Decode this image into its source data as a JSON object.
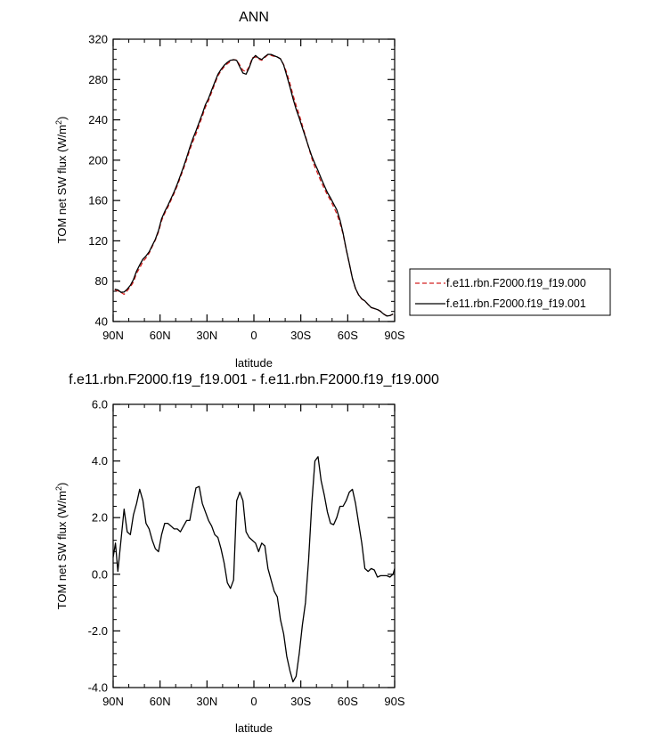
{
  "chart_data": [
    {
      "type": "line",
      "title": "ANN",
      "xlabel": "latitude",
      "ylabel_main": "TOM net SW flux (W/m",
      "ylabel_sup": "2",
      "ylabel_tail": ")",
      "xlim": [
        90,
        -90
      ],
      "ylim": [
        40,
        320
      ],
      "x_tick_values": [
        90,
        60,
        30,
        0,
        -30,
        -60,
        -90
      ],
      "x_tick_labels": [
        "90N",
        "60N",
        "30N",
        "0",
        "30S",
        "60S",
        "90S"
      ],
      "y_tick_values": [
        40,
        80,
        120,
        160,
        200,
        240,
        280,
        320
      ],
      "y_tick_labels": [
        "40",
        "80",
        "120",
        "160",
        "200",
        "240",
        "280",
        "320"
      ],
      "legend": "right",
      "series": [
        {
          "name": "f.e11.rbn.F2000.f19_f19.000",
          "style": "dashed",
          "color": "#d42020",
          "x": [
            89,
            87,
            85,
            83,
            81,
            79,
            77,
            75,
            73,
            71,
            69,
            67,
            65,
            63,
            61,
            59,
            57,
            55,
            53,
            51,
            49,
            47,
            45,
            43,
            41,
            39,
            37,
            35,
            33,
            31,
            29,
            27,
            25,
            23,
            21,
            19,
            17,
            15,
            13,
            11,
            9,
            7,
            5,
            3,
            1,
            -1,
            -3,
            -5,
            -7,
            -9,
            -11,
            -13,
            -15,
            -17,
            -19,
            -21,
            -23,
            -25,
            -27,
            -29,
            -31,
            -33,
            -35,
            -37,
            -39,
            -41,
            -43,
            -45,
            -47,
            -49,
            -51,
            -53,
            -55,
            -57,
            -59,
            -61,
            -63,
            -65,
            -67,
            -69,
            -71,
            -73,
            -75,
            -77,
            -79,
            -81,
            -83,
            -85,
            -87,
            -89
          ],
          "values": [
            71.5,
            70.3,
            68.9,
            66.9,
            70.6,
            74.4,
            79.2,
            87.9,
            93.2,
            99.4,
            103.1,
            107.7,
            114.5,
            120.8,
            128.9,
            140.1,
            147.2,
            153.3,
            160.4,
            167.1,
            174.7,
            183,
            191.5,
            200.5,
            210,
            218.5,
            226,
            234.9,
            243.5,
            252.6,
            259.2,
            267.4,
            275.7,
            283.6,
            288.6,
            292.6,
            295.6,
            297.9,
            299.7,
            299.3,
            294.3,
            289.2,
            287.8,
            292.7,
            301.6,
            302.3,
            300.2,
            299.1,
            301.8,
            304.7,
            303.9,
            303,
            302.2,
            300.7,
            294.8,
            286.7,
            276.3,
            264.7,
            254.4,
            245,
            234.5,
            223.9,
            212.9,
            201.9,
            193,
            186.1,
            178.5,
            171.9,
            165.7,
            160.2,
            153.8,
            147,
            137.8,
            126.8,
            111.5,
            97.4,
            82.6,
            72.5,
            66.2,
            62.3,
            60.3,
            56.9,
            53.8,
            52.8,
            51.9,
            50.2,
            47.4,
            45.6,
            45.9,
            47.2
          ]
        },
        {
          "name": "f.e11.rbn.F2000.f19_f19.001",
          "style": "solid",
          "color": "#000000",
          "x": [
            89,
            87,
            85,
            83,
            81,
            79,
            77,
            75,
            73,
            71,
            69,
            67,
            65,
            63,
            61,
            59,
            57,
            55,
            53,
            51,
            49,
            47,
            45,
            43,
            41,
            39,
            37,
            35,
            33,
            31,
            29,
            27,
            25,
            23,
            21,
            19,
            17,
            15,
            13,
            11,
            9,
            7,
            5,
            3,
            1,
            -1,
            -3,
            -5,
            -7,
            -9,
            -11,
            -13,
            -15,
            -17,
            -19,
            -21,
            -23,
            -25,
            -27,
            -29,
            -31,
            -33,
            -35,
            -37,
            -39,
            -41,
            -43,
            -45,
            -47,
            -49,
            -51,
            -53,
            -55,
            -57,
            -59,
            -61,
            -63,
            -65,
            -67,
            -69,
            -71,
            -73,
            -75,
            -77,
            -79,
            -81,
            -83,
            -85,
            -87,
            -89
          ],
          "values": [
            72,
            71.4,
            69,
            69.2,
            72.1,
            75.9,
            81.6,
            90,
            96,
            101.9,
            105,
            109.1,
            115.3,
            121.6,
            130.2,
            141.9,
            149,
            155,
            162,
            168.7,
            176.4,
            184.8,
            193.4,
            202.6,
            212.4,
            221.4,
            229,
            237.7,
            246,
            255.1,
            261.3,
            269.6,
            277.4,
            285.1,
            290,
            294,
            297,
            299.1,
            299.7,
            298.9,
            292.5,
            286.4,
            285.3,
            291.7,
            300.3,
            303.8,
            301.3,
            299.9,
            302.7,
            305,
            304.9,
            303.6,
            302.3,
            300.6,
            294.4,
            283.9,
            272.9,
            261.1,
            250.6,
            241.8,
            232.2,
            222.8,
            213.3,
            203.9,
            196.4,
            189.6,
            181.9,
            174.8,
            168,
            162.6,
            156.7,
            150.9,
            140.8,
            127.7,
            111.8,
            97.6,
            82.8,
            72.7,
            66.4,
            62.5,
            60.4,
            57,
            53.9,
            52.9,
            51.8,
            50.1,
            47.3,
            45.5,
            45.8,
            47.4
          ]
        }
      ]
    },
    {
      "type": "line",
      "title": "f.e11.rbn.F2000.f19_f19.001 - f.e11.rbn.F2000.f19_f19.000",
      "xlabel": "latitude",
      "ylabel_main": "TOM net SW flux (W/m",
      "ylabel_sup": "2",
      "ylabel_tail": ")",
      "xlim": [
        90,
        -90
      ],
      "ylim": [
        -4,
        6
      ],
      "x_tick_values": [
        90,
        60,
        30,
        0,
        -30,
        -60,
        -90
      ],
      "x_tick_labels": [
        "90N",
        "60N",
        "30N",
        "0",
        "30S",
        "60S",
        "90S"
      ],
      "y_tick_values": [
        -4,
        -2,
        0,
        2,
        4,
        6
      ],
      "y_tick_labels": [
        "-4.0",
        "-2.0",
        "0.0",
        "2.0",
        "4.0",
        "6.0"
      ],
      "series": [
        {
          "style": "solid",
          "color": "#000000",
          "x": [
            90,
            88.5,
            87,
            85,
            83,
            81,
            79,
            77,
            75,
            73,
            71,
            69,
            67,
            65,
            63,
            61,
            59,
            57,
            55,
            53,
            51,
            49,
            47,
            45,
            43,
            41,
            39,
            37,
            35,
            33,
            31,
            29,
            27,
            25,
            23,
            21,
            19,
            17,
            15,
            13,
            11,
            9,
            7,
            5,
            3,
            1,
            -1,
            -3,
            -5,
            -7,
            -9,
            -11,
            -13,
            -15,
            -17,
            -19,
            -21,
            -23,
            -25,
            -27,
            -29,
            -31,
            -33,
            -35,
            -37,
            -39,
            -41,
            -43,
            -45,
            -47,
            -49,
            -51,
            -53,
            -55,
            -57,
            -59,
            -61,
            -63,
            -65,
            -67,
            -69,
            -71,
            -73,
            -75,
            -77,
            -79,
            -81,
            -83,
            -85,
            -87,
            -89,
            -90
          ],
          "values": [
            0.6,
            1.1,
            0.1,
            1.2,
            2.3,
            1.5,
            1.4,
            2.1,
            2.5,
            3,
            2.6,
            1.8,
            1.6,
            1.2,
            0.9,
            0.8,
            1.4,
            1.8,
            1.8,
            1.7,
            1.6,
            1.6,
            1.5,
            1.7,
            1.9,
            1.9,
            2.5,
            3.05,
            3.1,
            2.5,
            2.2,
            1.9,
            1.7,
            1.4,
            1.3,
            0.9,
            0.4,
            -0.3,
            -0.5,
            -0.2,
            2.6,
            2.9,
            2.6,
            1.5,
            1.3,
            1.2,
            1.1,
            0.8,
            1.1,
            1,
            0.2,
            -0.2,
            -0.6,
            -0.8,
            -1.6,
            -2.1,
            -2.9,
            -3.4,
            -3.8,
            -3.6,
            -2.8,
            -1.8,
            -1,
            0.5,
            2.5,
            4,
            4.15,
            3.3,
            2.8,
            2.2,
            1.8,
            1.75,
            2,
            2.4,
            2.4,
            2.6,
            2.9,
            3,
            2.5,
            1.8,
            1.1,
            0.2,
            0.1,
            0.2,
            0.15,
            -0.1,
            -0.05,
            -0.05,
            -0.05,
            -0.1,
            0,
            0.2
          ]
        }
      ]
    }
  ]
}
